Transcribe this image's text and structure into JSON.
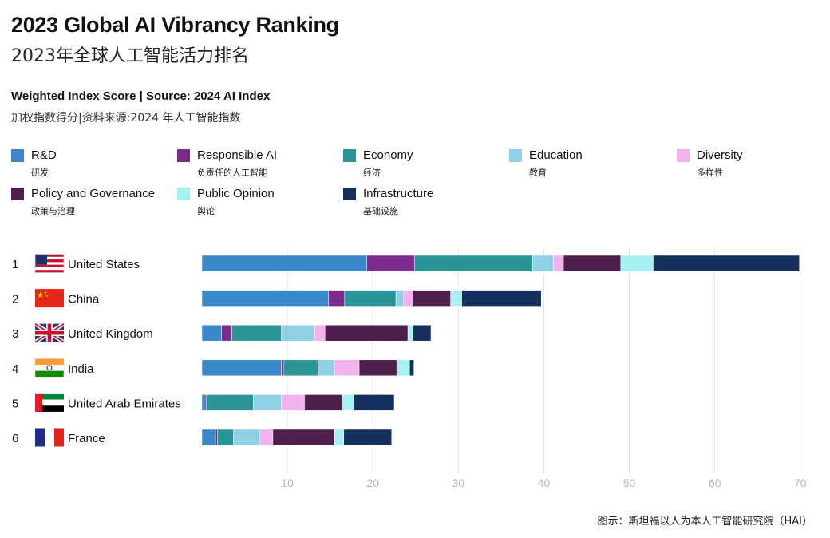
{
  "header": {
    "title": "2023 Global AI Vibrancy Ranking",
    "title_cn": "2023年全球人工智能活力排名",
    "subtitle": "Weighted Index Score | Source: 2024 AI Index",
    "subtitle_cn": "加权指数得分|资料来源:2024 年人工智能指数"
  },
  "legend": [
    {
      "label": "R&D",
      "label_cn": "研发",
      "color": "#3a87c9"
    },
    {
      "label": "Responsible AI",
      "label_cn": "负责任的人工智能",
      "color": "#7b2d8e"
    },
    {
      "label": "Economy",
      "label_cn": "经济",
      "color": "#2a9596"
    },
    {
      "label": "Education",
      "label_cn": "教育",
      "color": "#8fd0e6"
    },
    {
      "label": "Diversity",
      "label_cn": "多样性",
      "color": "#f2b2ef"
    },
    {
      "label": "Policy and Governance",
      "label_cn": "政策与治理",
      "color": "#4e1f4b"
    },
    {
      "label": "Public Opinion",
      "label_cn": "舆论",
      "color": "#a6f2f2"
    },
    {
      "label": "Infrastructure",
      "label_cn": "基础设施",
      "color": "#16305e"
    }
  ],
  "chart_data": {
    "type": "bar",
    "orientation": "horizontal",
    "stacked": true,
    "categories": [
      "United States",
      "China",
      "United Kingdom",
      "India",
      "United Arab Emirates",
      "France"
    ],
    "ranks": [
      "1",
      "2",
      "3",
      "4",
      "5",
      "6"
    ],
    "flags": [
      "us-flag",
      "china-flag",
      "uk-flag",
      "india-flag",
      "uae-flag",
      "france-flag"
    ],
    "series": [
      {
        "name": "R&D",
        "color": "#3a87c9",
        "values": [
          19.3,
          14.8,
          2.3,
          9.3,
          0.5,
          1.6
        ]
      },
      {
        "name": "Responsible AI",
        "color": "#7b2d8e",
        "values": [
          5.6,
          1.9,
          1.2,
          0.3,
          0.1,
          0.2
        ]
      },
      {
        "name": "Economy",
        "color": "#2a9596",
        "values": [
          13.8,
          6.0,
          5.8,
          4.0,
          5.4,
          1.9
        ]
      },
      {
        "name": "Education",
        "color": "#8fd0e6",
        "values": [
          2.4,
          0.9,
          3.9,
          1.9,
          3.3,
          3.1
        ]
      },
      {
        "name": "Diversity",
        "color": "#f2b2ef",
        "values": [
          1.2,
          1.1,
          1.2,
          2.9,
          2.7,
          1.5
        ]
      },
      {
        "name": "Policy and Governance",
        "color": "#4e1f4b",
        "values": [
          6.7,
          4.4,
          9.7,
          4.4,
          4.4,
          7.2
        ]
      },
      {
        "name": "Public Opinion",
        "color": "#a6f2f2",
        "values": [
          3.8,
          1.3,
          0.6,
          1.5,
          1.4,
          1.1
        ]
      },
      {
        "name": "Infrastructure",
        "color": "#16305e",
        "values": [
          17.1,
          9.3,
          2.1,
          0.5,
          4.7,
          5.6
        ]
      }
    ],
    "xlim": [
      0,
      70
    ],
    "xticks": [
      10,
      20,
      30,
      40,
      50,
      60,
      70
    ],
    "grid": true
  },
  "footer": {
    "credit": "图示：斯坦福以人为本人工智能研究院（HAI）"
  }
}
